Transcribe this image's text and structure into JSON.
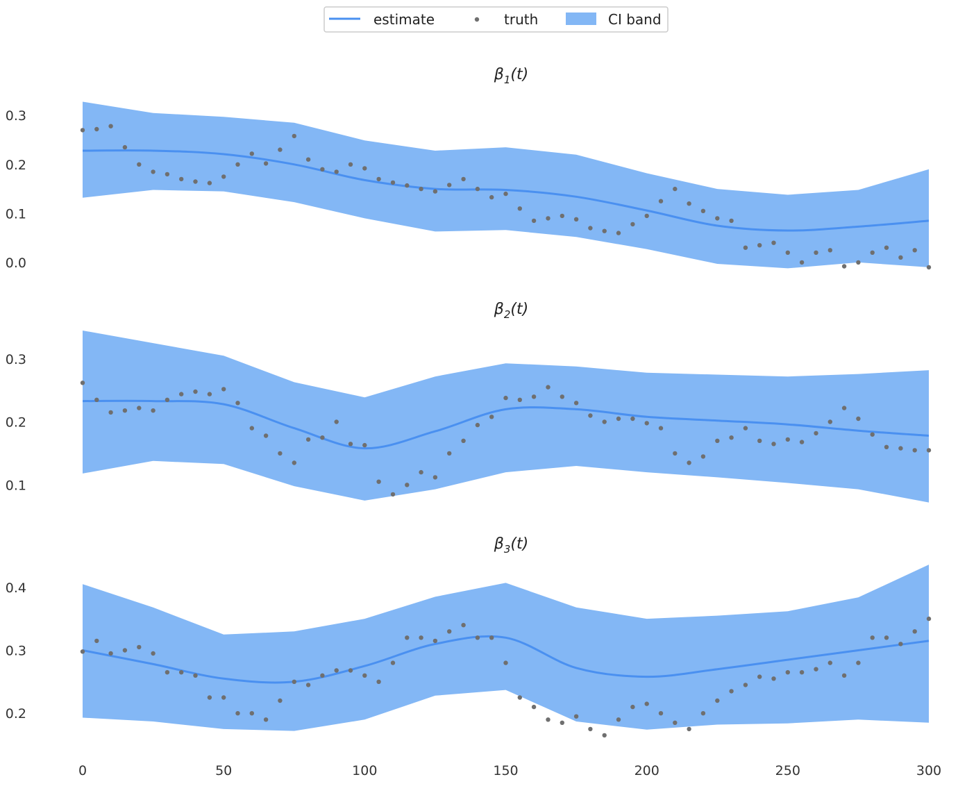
{
  "legend": {
    "estimate_label": "estimate",
    "truth_label": "truth",
    "ci_label": "CI band"
  },
  "colors": {
    "estimate": "#4a90f0",
    "band": "#83b7f5",
    "truth": "#6f6f6f",
    "legend_border": "#cccccc"
  },
  "chart_data": [
    {
      "type": "line",
      "title": "β1(t)",
      "title_base": "β",
      "title_sub": "1",
      "title_arg": "(t)",
      "xlim": [
        0,
        300
      ],
      "ylim": [
        -0.02,
        0.34
      ],
      "yticks": [
        0.0,
        0.1,
        0.2,
        0.3
      ],
      "ytick_labels": [
        "0.0",
        "0.1",
        "0.2",
        "0.3"
      ],
      "grid": false,
      "series": [
        {
          "name": "estimate",
          "x": [
            0,
            25,
            50,
            75,
            100,
            125,
            150,
            175,
            200,
            225,
            250,
            275,
            300
          ],
          "y": [
            0.228,
            0.228,
            0.221,
            0.2,
            0.168,
            0.15,
            0.148,
            0.134,
            0.106,
            0.075,
            0.065,
            0.073,
            0.085
          ]
        },
        {
          "name": "CI band",
          "x": [
            0,
            25,
            50,
            75,
            100,
            125,
            150,
            175,
            200,
            225,
            250,
            275,
            300
          ],
          "lower": [
            0.132,
            0.148,
            0.145,
            0.123,
            0.09,
            0.063,
            0.066,
            0.052,
            0.027,
            -0.003,
            -0.012,
            0.0,
            -0.01
          ],
          "upper": [
            0.328,
            0.305,
            0.297,
            0.285,
            0.249,
            0.228,
            0.235,
            0.22,
            0.182,
            0.15,
            0.138,
            0.148,
            0.19
          ]
        },
        {
          "name": "truth",
          "x": [
            0,
            5,
            10,
            15,
            20,
            25,
            30,
            35,
            40,
            45,
            50,
            55,
            60,
            65,
            70,
            75,
            80,
            85,
            90,
            95,
            100,
            105,
            110,
            115,
            120,
            125,
            130,
            135,
            140,
            145,
            150,
            155,
            160,
            165,
            170,
            175,
            180,
            185,
            190,
            195,
            200,
            205,
            210,
            215,
            220,
            225,
            230,
            235,
            240,
            245,
            250,
            255,
            260,
            265,
            270,
            275,
            280,
            285,
            290,
            295,
            300
          ],
          "y": [
            0.27,
            0.272,
            0.278,
            0.235,
            0.2,
            0.185,
            0.18,
            0.17,
            0.165,
            0.162,
            0.175,
            0.2,
            0.222,
            0.202,
            0.23,
            0.258,
            0.21,
            0.19,
            0.185,
            0.2,
            0.192,
            0.17,
            0.163,
            0.157,
            0.15,
            0.145,
            0.158,
            0.17,
            0.15,
            0.133,
            0.14,
            0.11,
            0.085,
            0.09,
            0.095,
            0.088,
            0.07,
            0.064,
            0.06,
            0.078,
            0.095,
            0.125,
            0.15,
            0.12,
            0.105,
            0.09,
            0.085,
            0.03,
            0.035,
            0.04,
            0.02,
            0.0,
            0.02,
            0.025,
            -0.008,
            0.0,
            0.02,
            0.03,
            0.01,
            0.025,
            -0.01
          ]
        }
      ]
    },
    {
      "type": "line",
      "title": "β2(t)",
      "title_base": "β",
      "title_sub": "2",
      "title_arg": "(t)",
      "xlim": [
        0,
        300
      ],
      "ylim": [
        0.065,
        0.345
      ],
      "yticks": [
        0.1,
        0.2,
        0.3
      ],
      "ytick_labels": [
        "0.1",
        "0.2",
        "0.3"
      ],
      "grid": false,
      "series": [
        {
          "name": "estimate",
          "x": [
            0,
            25,
            50,
            75,
            100,
            125,
            150,
            175,
            200,
            225,
            250,
            275,
            300
          ],
          "y": [
            0.233,
            0.233,
            0.228,
            0.19,
            0.158,
            0.185,
            0.22,
            0.22,
            0.208,
            0.202,
            0.196,
            0.186,
            0.178
          ]
        },
        {
          "name": "CI band",
          "x": [
            0,
            25,
            50,
            75,
            100,
            125,
            150,
            175,
            200,
            225,
            250,
            275,
            300
          ],
          "lower": [
            0.118,
            0.138,
            0.133,
            0.098,
            0.075,
            0.093,
            0.12,
            0.13,
            0.12,
            0.112,
            0.103,
            0.093,
            0.072
          ],
          "upper": [
            0.345,
            0.325,
            0.305,
            0.263,
            0.239,
            0.272,
            0.293,
            0.288,
            0.278,
            0.275,
            0.272,
            0.276,
            0.282
          ]
        },
        {
          "name": "truth",
          "x": [
            0,
            5,
            10,
            15,
            20,
            25,
            30,
            35,
            40,
            45,
            50,
            55,
            60,
            65,
            70,
            75,
            80,
            85,
            90,
            95,
            100,
            105,
            110,
            115,
            120,
            125,
            130,
            135,
            140,
            145,
            150,
            155,
            160,
            165,
            170,
            175,
            180,
            185,
            190,
            195,
            200,
            205,
            210,
            215,
            220,
            225,
            230,
            235,
            240,
            245,
            250,
            255,
            260,
            265,
            270,
            275,
            280,
            285,
            290,
            295,
            300
          ],
          "y": [
            0.262,
            0.235,
            0.215,
            0.218,
            0.222,
            0.218,
            0.235,
            0.244,
            0.248,
            0.244,
            0.252,
            0.23,
            0.19,
            0.178,
            0.15,
            0.135,
            0.172,
            0.175,
            0.2,
            0.165,
            0.163,
            0.105,
            0.085,
            0.1,
            0.12,
            0.112,
            0.15,
            0.17,
            0.195,
            0.208,
            0.238,
            0.235,
            0.24,
            0.255,
            0.24,
            0.23,
            0.21,
            0.2,
            0.205,
            0.205,
            0.198,
            0.19,
            0.15,
            0.135,
            0.145,
            0.17,
            0.175,
            0.19,
            0.17,
            0.165,
            0.172,
            0.168,
            0.182,
            0.2,
            0.222,
            0.205,
            0.18,
            0.16,
            0.158,
            0.155,
            0.155
          ]
        }
      ]
    },
    {
      "type": "line",
      "title": "β3(t)",
      "title_base": "β",
      "title_sub": "3",
      "title_arg": "(t)",
      "xlim": [
        0,
        300
      ],
      "xticks": [
        0,
        50,
        100,
        150,
        200,
        250,
        300
      ],
      "xtick_labels": [
        "0",
        "50",
        "100",
        "150",
        "200",
        "250",
        "300"
      ],
      "ylim": [
        0.155,
        0.435
      ],
      "yticks": [
        0.2,
        0.3,
        0.4
      ],
      "ytick_labels": [
        "0.2",
        "0.3",
        "0.4"
      ],
      "grid": false,
      "series": [
        {
          "name": "estimate",
          "x": [
            0,
            25,
            50,
            75,
            100,
            125,
            150,
            175,
            200,
            225,
            250,
            275,
            300
          ],
          "y": [
            0.3,
            0.278,
            0.255,
            0.25,
            0.275,
            0.31,
            0.32,
            0.272,
            0.258,
            0.27,
            0.285,
            0.3,
            0.315
          ]
        },
        {
          "name": "CI band",
          "x": [
            0,
            25,
            50,
            75,
            100,
            125,
            150,
            175,
            200,
            225,
            250,
            275,
            300
          ],
          "lower": [
            0.193,
            0.187,
            0.175,
            0.172,
            0.19,
            0.228,
            0.237,
            0.187,
            0.174,
            0.182,
            0.184,
            0.19,
            0.185
          ],
          "upper": [
            0.405,
            0.368,
            0.325,
            0.33,
            0.35,
            0.385,
            0.407,
            0.368,
            0.35,
            0.355,
            0.362,
            0.384,
            0.436
          ]
        },
        {
          "name": "truth",
          "x": [
            0,
            5,
            10,
            15,
            20,
            25,
            30,
            35,
            40,
            45,
            50,
            55,
            60,
            65,
            70,
            75,
            80,
            85,
            90,
            95,
            100,
            105,
            110,
            115,
            120,
            125,
            130,
            135,
            140,
            145,
            150,
            155,
            160,
            165,
            170,
            175,
            180,
            185,
            190,
            195,
            200,
            205,
            210,
            215,
            220,
            225,
            230,
            235,
            240,
            245,
            250,
            255,
            260,
            265,
            270,
            275,
            280,
            285,
            290,
            295,
            300
          ],
          "y": [
            0.298,
            0.315,
            0.295,
            0.3,
            0.305,
            0.295,
            0.265,
            0.265,
            0.26,
            0.225,
            0.225,
            0.2,
            0.2,
            0.19,
            0.22,
            0.25,
            0.245,
            0.26,
            0.268,
            0.268,
            0.26,
            0.25,
            0.28,
            0.32,
            0.32,
            0.315,
            0.33,
            0.34,
            0.32,
            0.32,
            0.28,
            0.225,
            0.21,
            0.19,
            0.185,
            0.195,
            0.175,
            0.165,
            0.19,
            0.21,
            0.215,
            0.2,
            0.185,
            0.175,
            0.2,
            0.22,
            0.235,
            0.245,
            0.258,
            0.255,
            0.265,
            0.265,
            0.27,
            0.28,
            0.26,
            0.28,
            0.32,
            0.32,
            0.31,
            0.33,
            0.35
          ]
        }
      ]
    }
  ]
}
